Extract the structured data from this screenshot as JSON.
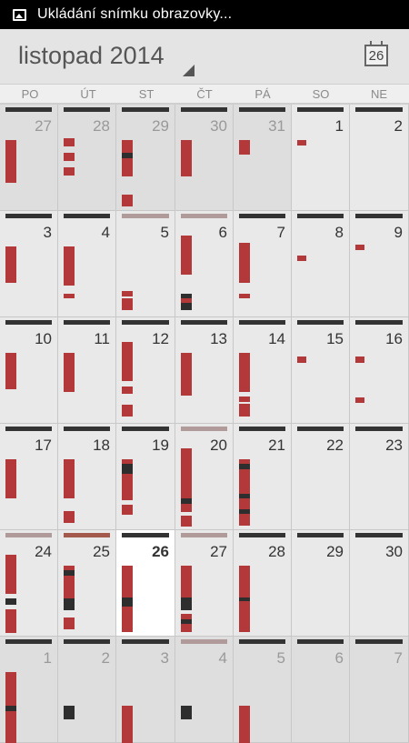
{
  "status_bar": {
    "notification_icon": "image-icon",
    "text": "Ukládání snímku obrazovky..."
  },
  "header": {
    "month_title": "listopad 2014",
    "today_button_label": "26",
    "today_icon": "calendar-today-icon"
  },
  "weekdays": [
    "PO",
    "ÚT",
    "ST",
    "ČT",
    "PÁ",
    "SO",
    "NE"
  ],
  "colors": {
    "event_red": "#b2383a",
    "event_dark": "#2e2e2e",
    "topbar_dark": "#333333",
    "topbar_light": "#b09a9a",
    "topbar_rust": "#a35a4c",
    "today_bg": "#ffffff"
  },
  "weeks": [
    [
      {
        "day": "27",
        "other": true,
        "top": "dark",
        "events": [
          [
            "r",
            0.33,
            0.73
          ]
        ]
      },
      {
        "day": "28",
        "other": true,
        "top": "dark",
        "events": [
          [
            "r",
            0.32,
            0.4
          ],
          [
            "r",
            0.45,
            0.53
          ],
          [
            "r",
            0.59,
            0.67
          ]
        ]
      },
      {
        "day": "29",
        "other": true,
        "top": "dark",
        "events": [
          [
            "r",
            0.33,
            0.45
          ],
          [
            "d",
            0.45,
            0.5
          ],
          [
            "r",
            0.5,
            0.67
          ],
          [
            "r",
            0.85,
            0.96
          ]
        ]
      },
      {
        "day": "30",
        "other": true,
        "top": "dark",
        "events": [
          [
            "r",
            0.33,
            0.67
          ]
        ]
      },
      {
        "day": "31",
        "other": true,
        "top": "dark",
        "events": [
          [
            "r",
            0.33,
            0.47
          ]
        ]
      },
      {
        "day": "1",
        "other": false,
        "top": "dark",
        "events": [
          [
            "s",
            0.33,
            0.38
          ]
        ]
      },
      {
        "day": "2",
        "other": false,
        "top": "dark",
        "events": []
      }
    ],
    [
      {
        "day": "3",
        "other": false,
        "top": "dark",
        "events": [
          [
            "r",
            0.33,
            0.67
          ]
        ]
      },
      {
        "day": "4",
        "other": false,
        "top": "dark",
        "events": [
          [
            "r",
            0.33,
            0.7
          ],
          [
            "r",
            0.78,
            0.82
          ]
        ]
      },
      {
        "day": "5",
        "other": false,
        "top": "light",
        "events": [
          [
            "r",
            0.75,
            0.8
          ],
          [
            "r",
            0.82,
            0.93
          ]
        ]
      },
      {
        "day": "6",
        "other": false,
        "top": "light",
        "events": [
          [
            "r",
            0.23,
            0.6
          ],
          [
            "d",
            0.78,
            0.82
          ],
          [
            "r",
            0.82,
            0.86
          ],
          [
            "d",
            0.86,
            0.93
          ]
        ]
      },
      {
        "day": "7",
        "other": false,
        "top": "dark",
        "events": [
          [
            "r",
            0.3,
            0.68
          ],
          [
            "r",
            0.78,
            0.82
          ]
        ]
      },
      {
        "day": "8",
        "other": false,
        "top": "dark",
        "events": [
          [
            "s",
            0.42,
            0.47
          ]
        ]
      },
      {
        "day": "9",
        "other": false,
        "top": "dark",
        "events": [
          [
            "s",
            0.32,
            0.37
          ]
        ]
      }
    ],
    [
      {
        "day": "10",
        "other": false,
        "top": "dark",
        "events": [
          [
            "r",
            0.33,
            0.67
          ]
        ]
      },
      {
        "day": "11",
        "other": false,
        "top": "dark",
        "events": [
          [
            "r",
            0.33,
            0.7
          ]
        ]
      },
      {
        "day": "12",
        "other": false,
        "top": "dark",
        "events": [
          [
            "r",
            0.23,
            0.6
          ],
          [
            "r",
            0.65,
            0.72
          ],
          [
            "r",
            0.82,
            0.93
          ]
        ]
      },
      {
        "day": "13",
        "other": false,
        "top": "dark",
        "events": [
          [
            "r",
            0.33,
            0.73
          ]
        ]
      },
      {
        "day": "14",
        "other": false,
        "top": "dark",
        "events": [
          [
            "r",
            0.33,
            0.7
          ],
          [
            "r",
            0.74,
            0.79
          ],
          [
            "r",
            0.81,
            0.93
          ]
        ]
      },
      {
        "day": "15",
        "other": false,
        "top": "dark",
        "events": [
          [
            "s",
            0.37,
            0.43
          ]
        ]
      },
      {
        "day": "16",
        "other": false,
        "top": "dark",
        "events": [
          [
            "s",
            0.37,
            0.43
          ],
          [
            "s",
            0.75,
            0.8
          ]
        ]
      }
    ],
    [
      {
        "day": "17",
        "other": false,
        "top": "dark",
        "events": [
          [
            "r",
            0.33,
            0.7
          ]
        ]
      },
      {
        "day": "18",
        "other": false,
        "top": "dark",
        "events": [
          [
            "r",
            0.33,
            0.7
          ],
          [
            "r",
            0.82,
            0.93
          ]
        ]
      },
      {
        "day": "19",
        "other": false,
        "top": "dark",
        "events": [
          [
            "r",
            0.33,
            0.38
          ],
          [
            "d",
            0.38,
            0.47
          ],
          [
            "r",
            0.47,
            0.72
          ],
          [
            "r",
            0.76,
            0.85
          ]
        ]
      },
      {
        "day": "20",
        "other": false,
        "top": "light",
        "events": [
          [
            "r",
            0.23,
            0.6
          ],
          [
            "r",
            0.6,
            0.7
          ],
          [
            "d",
            0.7,
            0.75
          ],
          [
            "r",
            0.75,
            0.83
          ],
          [
            "r",
            0.86,
            0.96
          ]
        ]
      },
      {
        "day": "21",
        "other": false,
        "top": "dark",
        "events": [
          [
            "r",
            0.33,
            0.38
          ],
          [
            "d",
            0.38,
            0.43
          ],
          [
            "r",
            0.43,
            0.66
          ],
          [
            "d",
            0.66,
            0.7
          ],
          [
            "r",
            0.7,
            0.8
          ],
          [
            "d",
            0.8,
            0.85
          ],
          [
            "r",
            0.85,
            0.96
          ]
        ]
      },
      {
        "day": "22",
        "other": false,
        "top": "dark",
        "events": []
      },
      {
        "day": "23",
        "other": false,
        "top": "dark",
        "events": []
      }
    ],
    [
      {
        "day": "24",
        "other": false,
        "top": "light",
        "events": [
          [
            "r",
            0.23,
            0.6
          ],
          [
            "d",
            0.64,
            0.7
          ],
          [
            "r",
            0.74,
            0.96
          ]
        ]
      },
      {
        "day": "25",
        "other": false,
        "top": "rust",
        "events": [
          [
            "r",
            0.33,
            0.38
          ],
          [
            "d",
            0.38,
            0.43
          ],
          [
            "r",
            0.43,
            0.64
          ],
          [
            "d",
            0.64,
            0.75
          ],
          [
            "r",
            0.82,
            0.93
          ]
        ]
      },
      {
        "day": "26",
        "other": false,
        "today": true,
        "top": "dark",
        "events": [
          [
            "r",
            0.33,
            0.63
          ],
          [
            "d",
            0.63,
            0.72
          ],
          [
            "r",
            0.72,
            0.96
          ]
        ]
      },
      {
        "day": "27",
        "other": false,
        "top": "light",
        "events": [
          [
            "r",
            0.33,
            0.63
          ],
          [
            "d",
            0.63,
            0.75
          ],
          [
            "r",
            0.79,
            0.84
          ],
          [
            "d",
            0.84,
            0.88
          ],
          [
            "r",
            0.88,
            0.96
          ]
        ]
      },
      {
        "day": "28",
        "other": false,
        "top": "dark",
        "events": [
          [
            "r",
            0.33,
            0.63
          ],
          [
            "d",
            0.63,
            0.67
          ],
          [
            "r",
            0.67,
            0.96
          ]
        ]
      },
      {
        "day": "29",
        "other": false,
        "top": "dark",
        "events": []
      },
      {
        "day": "30",
        "other": false,
        "top": "dark",
        "events": []
      }
    ],
    [
      {
        "day": "1",
        "other": true,
        "top": "dark",
        "events": [
          [
            "r",
            0.33,
            0.65
          ],
          [
            "d",
            0.65,
            0.7
          ],
          [
            "r",
            0.7,
            1.0
          ]
        ]
      },
      {
        "day": "2",
        "other": true,
        "top": "dark",
        "events": [
          [
            "d",
            0.65,
            0.78
          ]
        ]
      },
      {
        "day": "3",
        "other": true,
        "top": "dark",
        "events": [
          [
            "r",
            0.65,
            1.0
          ]
        ]
      },
      {
        "day": "4",
        "other": true,
        "top": "light",
        "events": [
          [
            "d",
            0.65,
            0.78
          ]
        ]
      },
      {
        "day": "5",
        "other": true,
        "top": "dark",
        "events": [
          [
            "r",
            0.65,
            1.0
          ]
        ]
      },
      {
        "day": "6",
        "other": true,
        "top": "dark",
        "events": []
      },
      {
        "day": "7",
        "other": true,
        "top": "dark",
        "events": []
      }
    ]
  ]
}
